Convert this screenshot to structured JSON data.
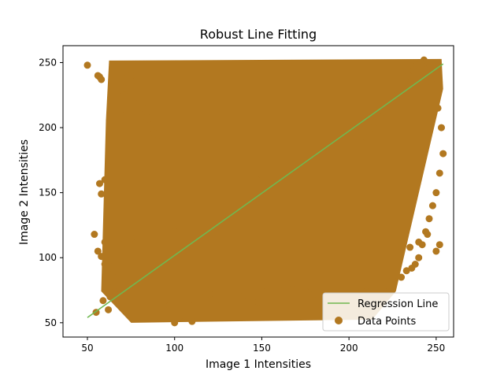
{
  "chart_data": {
    "type": "scatter",
    "title": "Robust Line Fitting",
    "xlabel": "Image 1 Intensities",
    "ylabel": "Image 2 Intensities",
    "xlim": [
      36,
      260
    ],
    "ylim": [
      39,
      263
    ],
    "xticks": [
      50,
      100,
      150,
      200,
      250
    ],
    "yticks": [
      50,
      100,
      150,
      200,
      250
    ],
    "grid": false,
    "legend_position": "lower right",
    "colors": {
      "points": "#b27820",
      "line": "#70b850",
      "axes": "#000000"
    },
    "series": [
      {
        "name": "Regression Line",
        "kind": "line",
        "x": [
          50,
          254
        ],
        "y": [
          54,
          249
        ]
      },
      {
        "name": "Data Points",
        "kind": "scatter",
        "cloud": {
          "x_range": [
            57,
            254
          ],
          "y_range": [
            50,
            254
          ],
          "note_density": "dense"
        },
        "x": [
          50,
          55,
          57,
          56,
          58,
          54,
          60,
          62,
          56,
          58,
          60,
          61,
          64,
          66,
          68,
          59,
          62,
          63,
          65,
          67,
          70,
          72,
          74,
          73,
          71,
          69,
          75,
          78,
          80,
          82,
          84,
          86,
          88,
          90,
          95,
          97,
          100,
          103,
          105,
          108,
          110,
          112,
          115,
          118,
          120,
          125,
          130,
          135,
          140,
          145,
          148,
          150,
          155,
          160,
          165,
          170,
          175,
          180,
          185,
          190,
          195,
          200,
          205,
          210,
          215,
          220,
          225,
          230,
          233,
          236,
          238,
          240,
          242,
          244,
          246,
          248,
          250,
          252,
          254,
          253,
          251,
          249,
          247,
          245,
          243,
          241,
          239,
          237,
          234,
          232,
          230,
          228,
          226,
          224,
          222,
          220,
          218,
          216,
          214,
          212,
          210,
          100,
          110,
          147,
          186,
          200,
          61,
          63,
          70,
          75,
          58,
          57,
          60,
          62,
          228,
          235,
          240,
          245,
          250,
          252
        ],
        "y": [
          248,
          58,
          239,
          240,
          237,
          118,
          112,
          125,
          105,
          101,
          95,
          90,
          87,
          72,
          79,
          67,
          60,
          70,
          78,
          85,
          242,
          235,
          244,
          230,
          225,
          210,
          240,
          236,
          222,
          215,
          208,
          202,
          196,
          190,
          60,
          63,
          50,
          55,
          62,
          64,
          51,
          65,
          70,
          75,
          72,
          68,
          74,
          76,
          71,
          70,
          66,
          78,
          73,
          75,
          80,
          76,
          74,
          72,
          70,
          66,
          64,
          65,
          70,
          74,
          76,
          78,
          83,
          85,
          90,
          92,
          95,
          100,
          110,
          120,
          130,
          140,
          150,
          165,
          180,
          200,
          215,
          225,
          235,
          245,
          252,
          250,
          248,
          244,
          240,
          236,
          232,
          228,
          224,
          220,
          216,
          212,
          208,
          204,
          200,
          196,
          192,
          120,
          140,
          160,
          180,
          200,
          97,
          98,
          110,
          115,
          149,
          157,
          160,
          170,
          104,
          108,
          112,
          118,
          105,
          110
        ]
      }
    ]
  }
}
